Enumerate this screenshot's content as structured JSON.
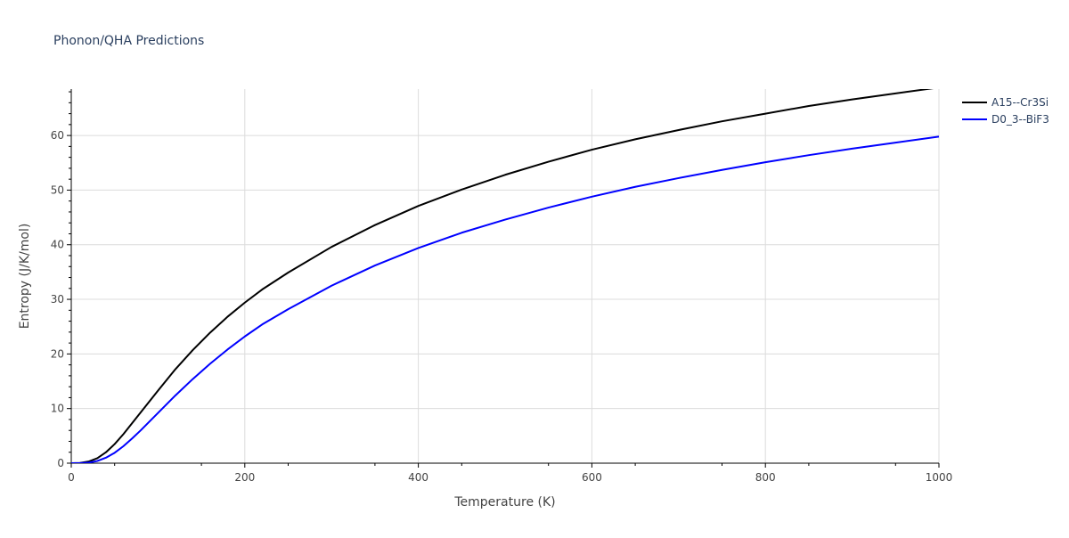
{
  "chart_data": {
    "type": "line",
    "title": "Phonon/QHA Predictions",
    "xlabel": "Temperature (K)",
    "ylabel": "Entropy (J/K/mol)",
    "xlim": [
      0,
      1000
    ],
    "ylim": [
      0,
      68.5
    ],
    "xticks": [
      0,
      200,
      400,
      600,
      800,
      1000
    ],
    "yticks": [
      0,
      10,
      20,
      30,
      40,
      50,
      60
    ],
    "grid": true,
    "legend_position": "top-right",
    "series": [
      {
        "name": "A15--Cr3Si",
        "color": "#000000",
        "x": [
          0,
          10,
          20,
          30,
          40,
          50,
          60,
          70,
          80,
          100,
          120,
          140,
          160,
          180,
          200,
          220,
          250,
          300,
          350,
          400,
          450,
          500,
          550,
          600,
          650,
          700,
          750,
          800,
          850,
          900,
          950,
          1000
        ],
        "y": [
          0,
          0.05,
          0.3,
          0.9,
          2.0,
          3.5,
          5.3,
          7.3,
          9.3,
          13.3,
          17.2,
          20.7,
          23.9,
          26.8,
          29.4,
          31.8,
          34.9,
          39.6,
          43.6,
          47.1,
          50.1,
          52.8,
          55.2,
          57.4,
          59.3,
          61.0,
          62.6,
          64.0,
          65.4,
          66.6,
          67.7,
          68.8
        ]
      },
      {
        "name": "D0_3--BiF3",
        "color": "#0000ff",
        "x": [
          0,
          10,
          20,
          30,
          40,
          50,
          60,
          70,
          80,
          100,
          120,
          140,
          160,
          180,
          200,
          220,
          250,
          300,
          350,
          400,
          450,
          500,
          550,
          600,
          650,
          700,
          750,
          800,
          850,
          900,
          950,
          1000
        ],
        "y": [
          0,
          0.02,
          0.1,
          0.4,
          1.0,
          1.9,
          3.1,
          4.5,
          6.0,
          9.2,
          12.4,
          15.4,
          18.2,
          20.8,
          23.2,
          25.4,
          28.2,
          32.5,
          36.2,
          39.4,
          42.2,
          44.6,
          46.8,
          48.8,
          50.6,
          52.2,
          53.7,
          55.1,
          56.4,
          57.6,
          58.7,
          59.8
        ]
      }
    ]
  }
}
